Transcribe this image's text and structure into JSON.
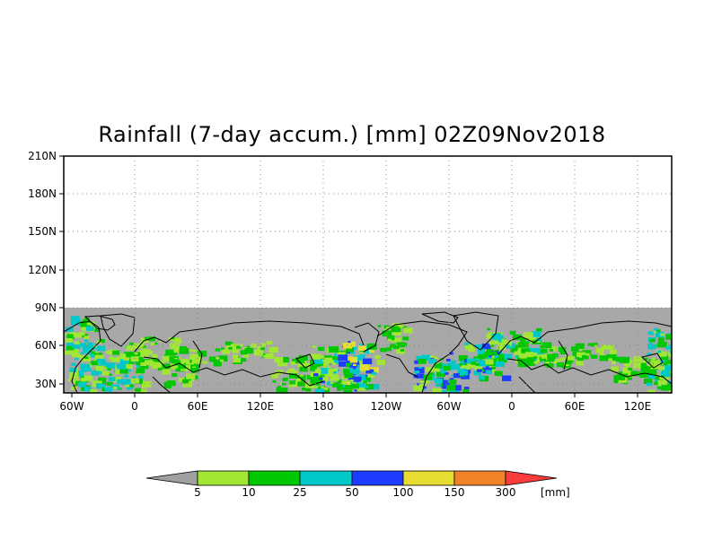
{
  "title": "Rainfall (7-day accum.) [mm] 02Z09Nov2018",
  "map": {
    "lat_ticks": [
      "210N",
      "180N",
      "150N",
      "120N",
      "90N",
      "60N",
      "30N"
    ],
    "lon_ticks": [
      "60W",
      "0",
      "60E",
      "120E",
      "180",
      "120W",
      "60W",
      "0",
      "60E",
      "120E"
    ],
    "nodata_color": "#a8a8a8",
    "coast_color": "#000000"
  },
  "colorbar": {
    "thresholds": [
      "5",
      "10",
      "25",
      "50",
      "100",
      "150",
      "300"
    ],
    "units": "[mm]",
    "colors": [
      "#a0a0a0",
      "#a0e632",
      "#00c800",
      "#00c8c8",
      "#1e3cff",
      "#e6dc32",
      "#f08228",
      "#fa3c3c"
    ]
  }
}
